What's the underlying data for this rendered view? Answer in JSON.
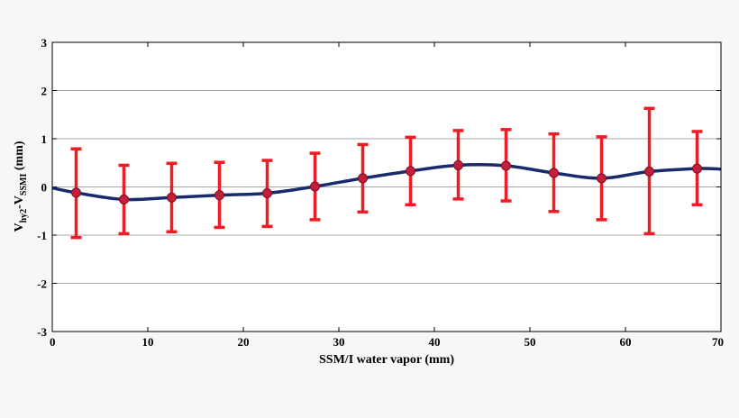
{
  "chart_data": {
    "type": "line",
    "title": "",
    "xlabel": "SSM/I water vapor (mm)",
    "ylabel_parts": {
      "v1": "V",
      "sub1": "hy2",
      "dash": "-",
      "v2": "V",
      "sub2": "SSMI",
      "unit": " (mm)"
    },
    "xlim": [
      0,
      70
    ],
    "ylim": [
      -3,
      3
    ],
    "xticks": [
      "0",
      "10",
      "20",
      "30",
      "40",
      "50",
      "60",
      "70"
    ],
    "yticks": [
      "-3",
      "-2",
      "-1",
      "0",
      "1",
      "2",
      "3"
    ],
    "grid": "horizontal",
    "series": [
      {
        "color": "#1a2a6c",
        "marker_color": "#c41e3a",
        "errorbar_color": "#ee1c25",
        "x": [
          2.5,
          7.5,
          12.5,
          17.5,
          22.5,
          27.5,
          32.5,
          37.5,
          42.5,
          47.5,
          52.5,
          57.5,
          62.5,
          67.5
        ],
        "y": [
          -0.12,
          -0.26,
          -0.22,
          -0.17,
          -0.13,
          0.01,
          0.18,
          0.33,
          0.45,
          0.44,
          0.29,
          0.18,
          0.32,
          0.38
        ],
        "low": [
          -1.05,
          -0.97,
          -0.93,
          -0.84,
          -0.82,
          -0.68,
          -0.52,
          -0.37,
          -0.25,
          -0.29,
          -0.51,
          -0.68,
          -0.97,
          -0.37
        ],
        "high": [
          0.79,
          0.45,
          0.49,
          0.51,
          0.55,
          0.7,
          0.88,
          1.03,
          1.17,
          1.19,
          1.1,
          1.04,
          1.63,
          1.15
        ]
      }
    ],
    "curve_start": [
      0,
      -0.02
    ],
    "curve_end": [
      70,
      0.37
    ]
  }
}
